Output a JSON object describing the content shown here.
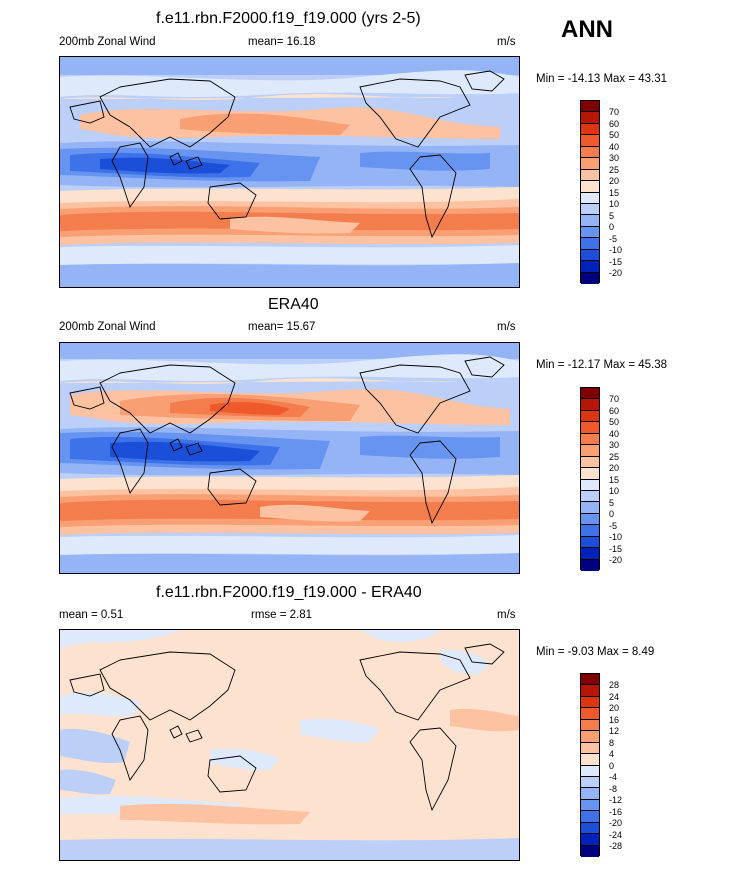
{
  "season": "ANN",
  "colors": {
    "full": [
      "#00007f",
      "#0022b8",
      "#1c4fd9",
      "#3d72e8",
      "#6794f0",
      "#94b4f5",
      "#bccff8",
      "#deeafc",
      "#fde2cf",
      "#fcc2a1",
      "#f89f74",
      "#f47d4e",
      "#ef5a2c",
      "#de3511",
      "#b51605",
      "#7f0000"
    ],
    "diff": [
      "#00007f",
      "#0022b8",
      "#1c4fd9",
      "#3d72e8",
      "#6794f0",
      "#94b4f5",
      "#bccff8",
      "#deeafc",
      "#fde2cf",
      "#fcc2a1",
      "#f89f74",
      "#f47d4e",
      "#ef5a2c",
      "#de3511",
      "#b51605",
      "#7f0000"
    ]
  },
  "panels": [
    {
      "title": "f.e11.rbn.F2000.f19_f19.000 (yrs 2-5)",
      "left": "200mb Zonal Wind",
      "center": "mean=  16.18",
      "units": "m/s",
      "minmax": "Min = -14.13 Max =  43.31",
      "levels": [
        "70",
        "60",
        "50",
        "40",
        "30",
        "25",
        "20",
        "15",
        "10",
        "5",
        "0",
        "-5",
        "-10",
        "-15",
        "-20"
      ]
    },
    {
      "title": "ERA40",
      "left": "200mb Zonal Wind",
      "center": "mean=  15.67",
      "units": "m/s",
      "minmax": "Min = -12.17 Max =  45.38",
      "levels": [
        "70",
        "60",
        "50",
        "40",
        "30",
        "25",
        "20",
        "15",
        "10",
        "5",
        "0",
        "-5",
        "-10",
        "-15",
        "-20"
      ]
    },
    {
      "title": "f.e11.rbn.F2000.f19_f19.000 - ERA40",
      "left": "mean =   0.51",
      "center": "rmse =   2.81",
      "units": "m/s",
      "minmax": "Min =  -9.03 Max =   8.49",
      "levels": [
        "28",
        "24",
        "20",
        "16",
        "12",
        "8",
        "4",
        "0",
        "-4",
        "-8",
        "-12",
        "-16",
        "-20",
        "-24",
        "-28"
      ]
    }
  ],
  "chart_data": [
    {
      "type": "heatmap",
      "title": "f.e11.rbn.F2000.f19_f19.000 (yrs 2-5)",
      "variable": "200mb Zonal Wind",
      "units": "m/s",
      "mean": 16.18,
      "min": -14.13,
      "max": 43.31,
      "contour_levels": [
        -20,
        -15,
        -10,
        -5,
        0,
        5,
        10,
        15,
        20,
        25,
        30,
        40,
        50,
        60,
        70
      ]
    },
    {
      "type": "heatmap",
      "title": "ERA40",
      "variable": "200mb Zonal Wind",
      "units": "m/s",
      "mean": 15.67,
      "min": -12.17,
      "max": 45.38,
      "contour_levels": [
        -20,
        -15,
        -10,
        -5,
        0,
        5,
        10,
        15,
        20,
        25,
        30,
        40,
        50,
        60,
        70
      ]
    },
    {
      "type": "heatmap",
      "title": "f.e11.rbn.F2000.f19_f19.000 - ERA40",
      "units": "m/s",
      "mean": 0.51,
      "rmse": 2.81,
      "min": -9.03,
      "max": 8.49,
      "contour_levels": [
        -28,
        -24,
        -20,
        -16,
        -12,
        -8,
        -4,
        0,
        4,
        8,
        12,
        16,
        20,
        24,
        28
      ]
    }
  ]
}
